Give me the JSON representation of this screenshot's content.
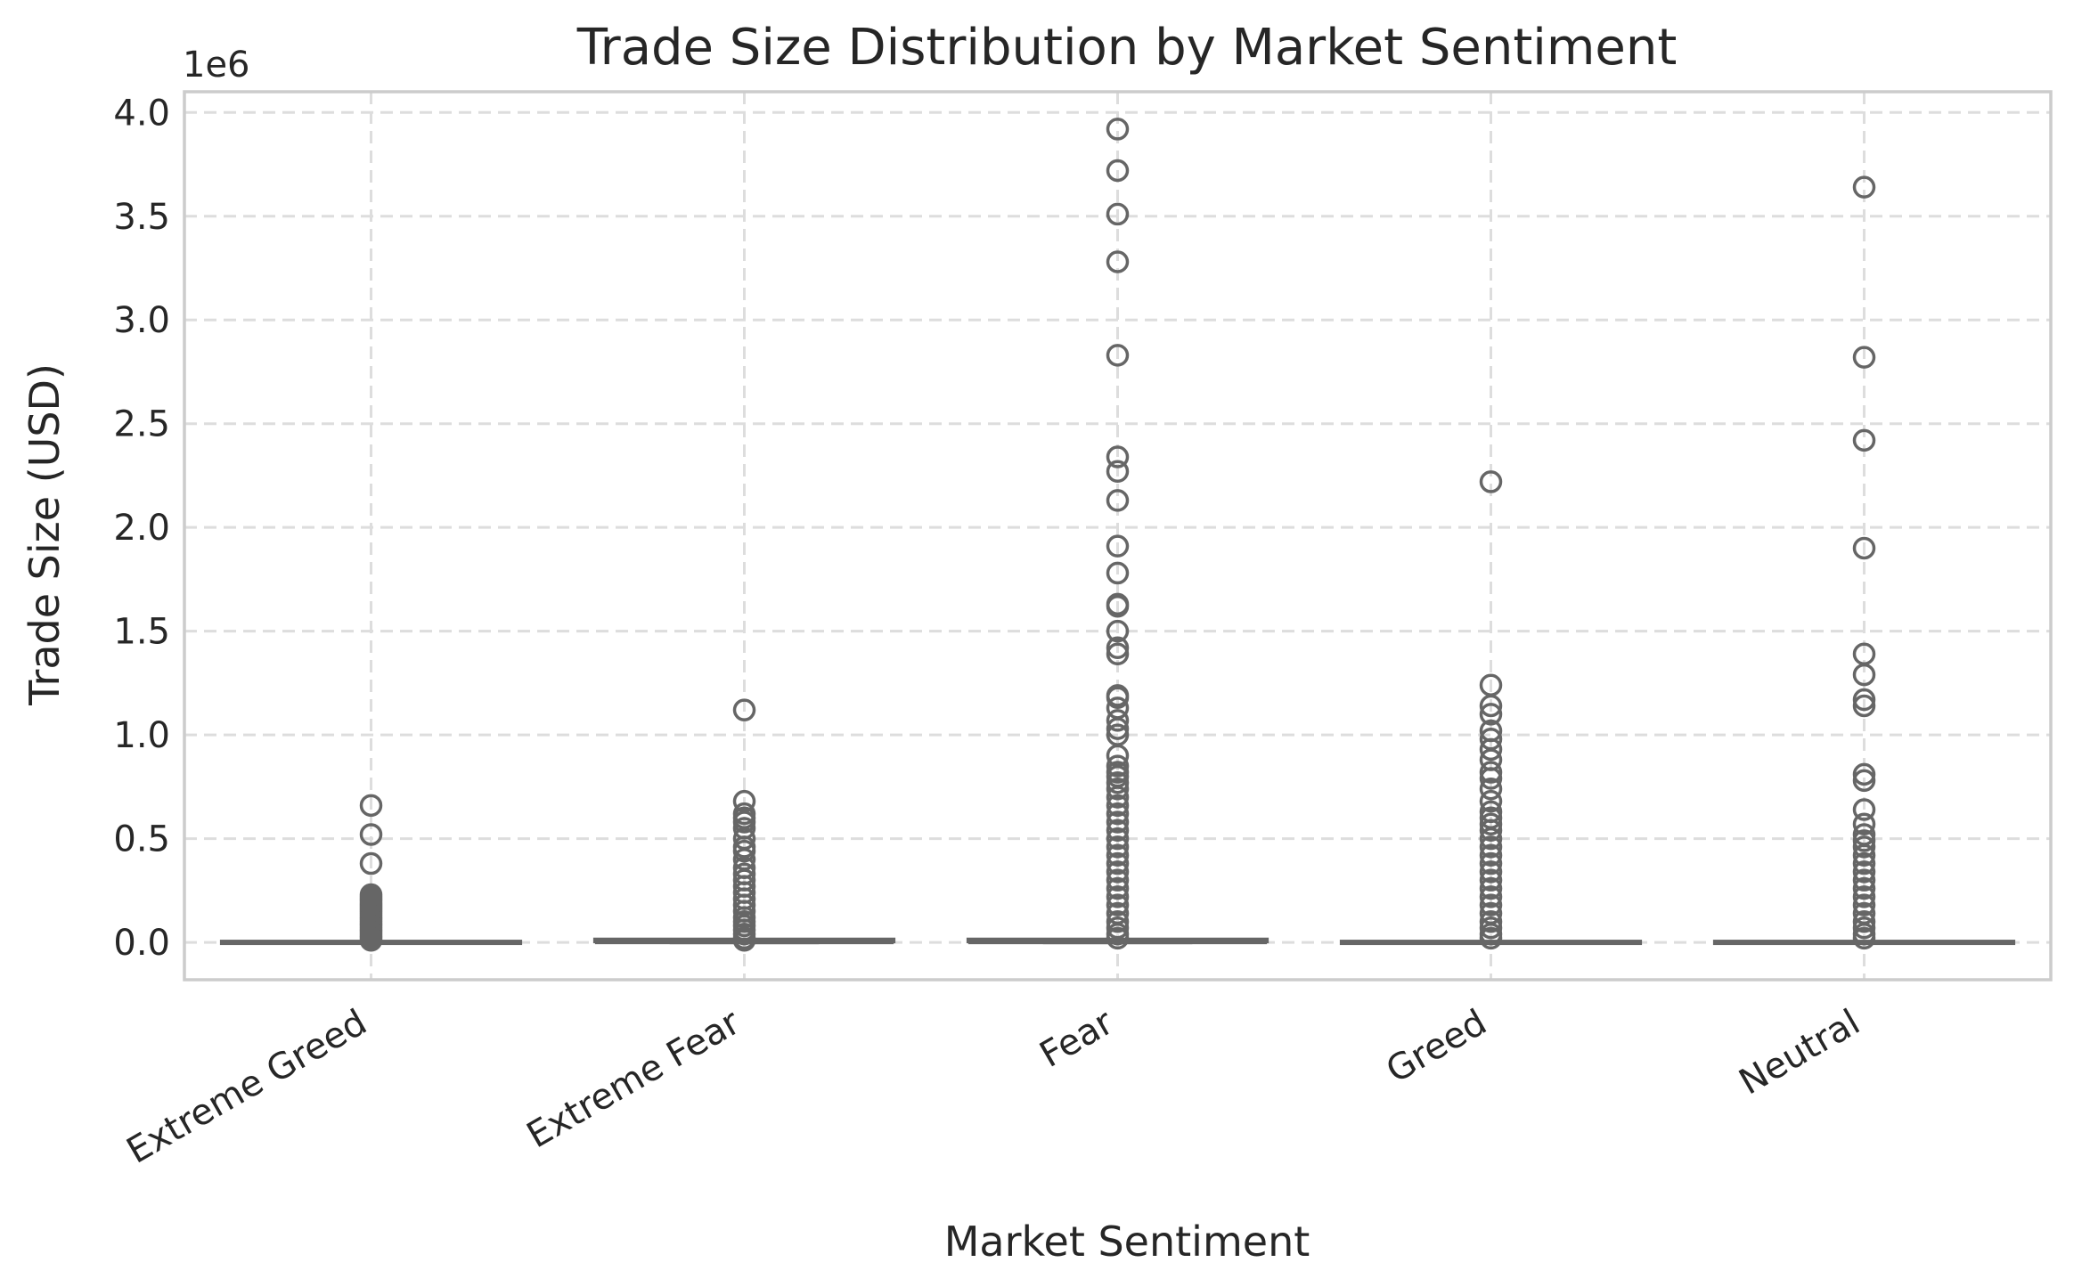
{
  "chart_data": {
    "type": "box",
    "title": "Trade Size Distribution by Market Sentiment",
    "xlabel": "Market Sentiment",
    "ylabel": "Trade Size (USD)",
    "y_offset_label": "1e6",
    "ylim": [
      -0.18,
      4.1
    ],
    "yticks": [
      0.0,
      0.5,
      1.0,
      1.5,
      2.0,
      2.5,
      3.0,
      3.5,
      4.0
    ],
    "ytick_labels": [
      "0.0",
      "0.5",
      "1.0",
      "1.5",
      "2.0",
      "2.5",
      "3.0",
      "3.5",
      "4.0"
    ],
    "grid": true,
    "categories": [
      "Extreme Greed",
      "Extreme Fear",
      "Fear",
      "Greed",
      "Neutral"
    ],
    "colors": {
      "box": "#666666",
      "grid": "#dddddd",
      "spine": "#cccccc",
      "text": "#262626"
    },
    "boxes": [
      {
        "category": "Extreme Greed",
        "whisker_low": 0.0,
        "q1": 0.0,
        "median": 0.0,
        "q3": 0.0,
        "whisker_high": 0.0,
        "outliers": [
          0.66,
          0.52,
          0.38,
          0.23,
          0.22,
          0.21,
          0.2,
          0.19,
          0.18,
          0.17,
          0.16,
          0.15,
          0.14,
          0.13,
          0.12,
          0.11,
          0.1,
          0.09,
          0.08,
          0.07,
          0.06,
          0.05,
          0.04,
          0.03,
          0.02,
          0.01
        ]
      },
      {
        "category": "Extreme Fear",
        "whisker_low": 0.0,
        "q1": 0.0,
        "median": 0.0,
        "q3": 0.01,
        "whisker_high": 0.01,
        "outliers": [
          1.12,
          0.68,
          0.62,
          0.6,
          0.58,
          0.55,
          0.5,
          0.46,
          0.44,
          0.4,
          0.36,
          0.33,
          0.3,
          0.27,
          0.24,
          0.21,
          0.18,
          0.15,
          0.12,
          0.1,
          0.08,
          0.06,
          0.04,
          0.02,
          0.01
        ]
      },
      {
        "category": "Fear",
        "whisker_low": 0.0,
        "q1": 0.0,
        "median": 0.0,
        "q3": 0.01,
        "whisker_high": 0.01,
        "outliers": [
          3.92,
          3.72,
          3.51,
          3.28,
          2.83,
          2.34,
          2.27,
          2.13,
          1.91,
          1.78,
          1.63,
          1.62,
          1.5,
          1.42,
          1.39,
          1.19,
          1.18,
          1.13,
          1.07,
          1.03,
          1.0,
          0.9,
          0.85,
          0.82,
          0.8,
          0.77,
          0.74,
          0.7,
          0.66,
          0.62,
          0.58,
          0.54,
          0.5,
          0.46,
          0.42,
          0.38,
          0.34,
          0.3,
          0.26,
          0.22,
          0.18,
          0.14,
          0.1,
          0.07,
          0.04,
          0.02
        ]
      },
      {
        "category": "Greed",
        "whisker_low": 0.0,
        "q1": 0.0,
        "median": 0.0,
        "q3": 0.0,
        "whisker_high": 0.0,
        "outliers": [
          2.22,
          1.24,
          1.14,
          1.1,
          1.02,
          0.98,
          0.93,
          0.88,
          0.82,
          0.79,
          0.74,
          0.68,
          0.63,
          0.6,
          0.57,
          0.54,
          0.5,
          0.46,
          0.42,
          0.38,
          0.34,
          0.3,
          0.26,
          0.22,
          0.18,
          0.14,
          0.1,
          0.07,
          0.04,
          0.02
        ]
      },
      {
        "category": "Neutral",
        "whisker_low": 0.0,
        "q1": 0.0,
        "median": 0.0,
        "q3": 0.0,
        "whisker_high": 0.0,
        "outliers": [
          3.64,
          2.82,
          2.42,
          1.9,
          1.39,
          1.29,
          1.17,
          1.14,
          0.81,
          0.78,
          0.64,
          0.57,
          0.52,
          0.49,
          0.46,
          0.42,
          0.38,
          0.34,
          0.3,
          0.26,
          0.22,
          0.18,
          0.14,
          0.1,
          0.07,
          0.04,
          0.02
        ]
      }
    ]
  }
}
